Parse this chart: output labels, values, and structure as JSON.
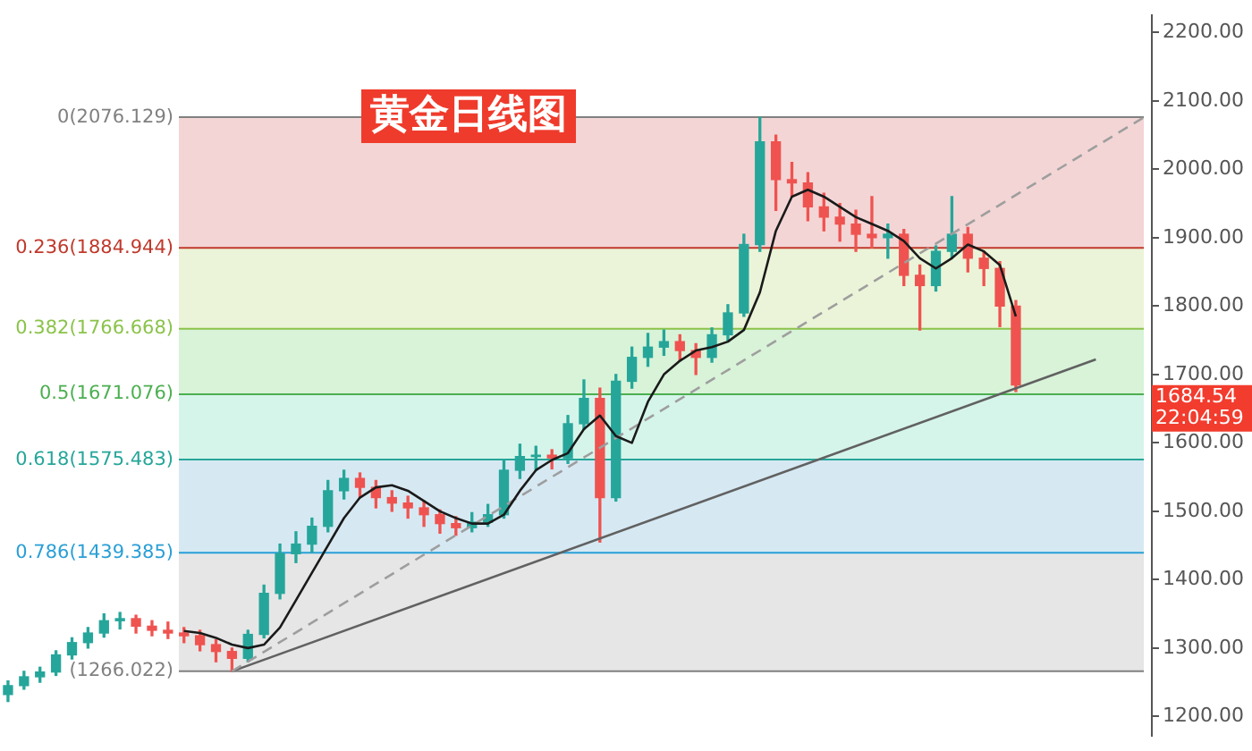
{
  "chart_data": {
    "type": "candlestick",
    "title": "黄金日线图",
    "categories": [
      null,
      null,
      null,
      null,
      null,
      null,
      null,
      null,
      null,
      null,
      null,
      null,
      null,
      null,
      null,
      null,
      null,
      null,
      null,
      null,
      null,
      null,
      null,
      null,
      null,
      null,
      null,
      null,
      null,
      null,
      null,
      null,
      null,
      null,
      null,
      null,
      null,
      null,
      null,
      null,
      null,
      null,
      null,
      null,
      null,
      null,
      null,
      null,
      null,
      null,
      null,
      null,
      null,
      null,
      null,
      null,
      null,
      null,
      null,
      null,
      null,
      null,
      null,
      null,
      null,
      null,
      null,
      null,
      null,
      null,
      null,
      null
    ],
    "ohlc": [
      [
        1232,
        1252,
        1222,
        1245
      ],
      [
        1245,
        1266,
        1240,
        1258
      ],
      [
        1258,
        1272,
        1250,
        1265
      ],
      [
        1265,
        1296,
        1260,
        1290
      ],
      [
        1290,
        1315,
        1284,
        1308
      ],
      [
        1308,
        1330,
        1300,
        1322
      ],
      [
        1322,
        1350,
        1316,
        1340
      ],
      [
        1340,
        1352,
        1328,
        1343
      ],
      [
        1343,
        1348,
        1322,
        1332
      ],
      [
        1332,
        1340,
        1318,
        1326
      ],
      [
        1326,
        1338,
        1314,
        1322
      ],
      [
        1322,
        1330,
        1308,
        1318
      ],
      [
        1318,
        1326,
        1296,
        1305
      ],
      [
        1305,
        1312,
        1280,
        1295
      ],
      [
        1295,
        1300,
        1266.022,
        1285
      ],
      [
        1285,
        1326,
        1280,
        1320
      ],
      [
        1320,
        1392,
        1315,
        1380
      ],
      [
        1380,
        1452,
        1372,
        1438
      ],
      [
        1438,
        1470,
        1425,
        1452
      ],
      [
        1452,
        1490,
        1440,
        1478
      ],
      [
        1478,
        1545,
        1470,
        1530
      ],
      [
        1530,
        1560,
        1518,
        1548
      ],
      [
        1548,
        1556,
        1520,
        1535
      ],
      [
        1535,
        1545,
        1505,
        1520
      ],
      [
        1520,
        1530,
        1500,
        1512
      ],
      [
        1512,
        1522,
        1490,
        1505
      ],
      [
        1505,
        1515,
        1478,
        1495
      ],
      [
        1495,
        1502,
        1468,
        1482
      ],
      [
        1482,
        1492,
        1465,
        1476
      ],
      [
        1476,
        1498,
        1470,
        1484
      ],
      [
        1484,
        1510,
        1478,
        1495
      ],
      [
        1495,
        1575,
        1490,
        1560
      ],
      [
        1560,
        1598,
        1548,
        1580
      ],
      [
        1580,
        1595,
        1560,
        1582
      ],
      [
        1582,
        1590,
        1562,
        1578
      ],
      [
        1578,
        1640,
        1570,
        1628
      ],
      [
        1628,
        1692,
        1620,
        1665
      ],
      [
        1665,
        1680,
        1455,
        1520
      ],
      [
        1520,
        1700,
        1515,
        1690
      ],
      [
        1690,
        1740,
        1680,
        1725
      ],
      [
        1725,
        1760,
        1712,
        1740
      ],
      [
        1740,
        1765,
        1728,
        1748
      ],
      [
        1748,
        1758,
        1720,
        1735
      ],
      [
        1735,
        1745,
        1700,
        1725
      ],
      [
        1725,
        1768,
        1718,
        1758
      ],
      [
        1758,
        1802,
        1750,
        1790
      ],
      [
        1790,
        1905,
        1785,
        1890
      ],
      [
        1890,
        2076.129,
        1880,
        2040
      ],
      [
        2040,
        2050,
        1940,
        1985
      ],
      [
        1985,
        2010,
        1960,
        1980
      ],
      [
        1980,
        1995,
        1925,
        1945
      ],
      [
        1945,
        1965,
        1910,
        1930
      ],
      [
        1930,
        1950,
        1895,
        1920
      ],
      [
        1920,
        1940,
        1880,
        1905
      ],
      [
        1905,
        1960,
        1885,
        1900
      ],
      [
        1900,
        1920,
        1870,
        1905
      ],
      [
        1905,
        1912,
        1830,
        1845
      ],
      [
        1845,
        1860,
        1765,
        1830
      ],
      [
        1830,
        1888,
        1822,
        1880
      ],
      [
        1880,
        1960,
        1870,
        1905
      ],
      [
        1905,
        1915,
        1850,
        1870
      ],
      [
        1870,
        1880,
        1830,
        1855
      ],
      [
        1855,
        1865,
        1770,
        1800
      ],
      [
        1800,
        1808,
        1675,
        1684.54
      ],
      null,
      null,
      null,
      null,
      null,
      null,
      null,
      null
    ],
    "colors": [
      "#26a69a",
      "#26a69a",
      "#26a69a",
      "#26a69a",
      "#26a69a",
      "#26a69a",
      "#26a69a",
      "#26a69a",
      "#ef5350",
      "#ef5350",
      "#ef5350",
      "#ef5350",
      "#ef5350",
      "#ef5350",
      "#ef5350",
      "#26a69a",
      "#26a69a",
      "#26a69a",
      "#26a69a",
      "#26a69a",
      "#26a69a",
      "#26a69a",
      "#ef5350",
      "#ef5350",
      "#ef5350",
      "#ef5350",
      "#ef5350",
      "#ef5350",
      "#ef5350",
      "#26a69a",
      "#26a69a",
      "#26a69a",
      "#26a69a",
      "#26a69a",
      "#ef5350",
      "#26a69a",
      "#26a69a",
      "#ef5350",
      "#26a69a",
      "#26a69a",
      "#26a69a",
      "#26a69a",
      "#ef5350",
      "#ef5350",
      "#26a69a",
      "#26a69a",
      "#26a69a",
      "#26a69a",
      "#ef5350",
      "#ef5350",
      "#ef5350",
      "#ef5350",
      "#ef5350",
      "#ef5350",
      "#ef5350",
      "#26a69a",
      "#ef5350",
      "#ef5350",
      "#26a69a",
      "#26a69a",
      "#ef5350",
      "#ef5350",
      "#ef5350",
      "#ef5350",
      null,
      null,
      null,
      null,
      null,
      null,
      null,
      null
    ],
    "series": [
      {
        "type": "line",
        "color": "#1a1a1a",
        "values": [
          null,
          null,
          null,
          null,
          null,
          null,
          null,
          null,
          null,
          null,
          null,
          1325,
          1322,
          1315,
          1305,
          1300,
          1305,
          1330,
          1370,
          1410,
          1450,
          1490,
          1520,
          1535,
          1538,
          1530,
          1515,
          1500,
          1490,
          1482,
          1482,
          1495,
          1530,
          1560,
          1575,
          1585,
          1620,
          1640,
          1610,
          1600,
          1660,
          1700,
          1720,
          1735,
          1740,
          1748,
          1765,
          1820,
          1910,
          1960,
          1970,
          1960,
          1945,
          1930,
          1920,
          1910,
          1895,
          1870,
          1855,
          1870,
          1890,
          1880,
          1860,
          1785,
          null,
          null,
          null,
          null,
          null,
          null,
          null,
          null
        ]
      },
      {
        "type": "line",
        "color": "#9e9e9e",
        "line_style": "dashed",
        "values": [
          null,
          null,
          null,
          null,
          null,
          null,
          null,
          null,
          null,
          null,
          null,
          null,
          null,
          null,
          1266,
          null,
          null,
          null,
          null,
          null,
          null,
          null,
          null,
          null,
          null,
          null,
          null,
          null,
          null,
          null,
          null,
          null,
          null,
          null,
          null,
          null,
          null,
          null,
          null,
          null,
          null,
          null,
          null,
          null,
          null,
          null,
          null,
          null,
          null,
          null,
          null,
          null,
          null,
          null,
          null,
          null,
          null,
          null,
          null,
          null,
          null,
          null,
          null,
          null,
          null,
          null,
          null,
          null,
          null,
          null,
          null,
          2076
        ]
      },
      {
        "type": "line",
        "color": "#616161",
        "line_style": "solid",
        "values": [
          null,
          null,
          null,
          null,
          null,
          null,
          null,
          null,
          null,
          null,
          null,
          null,
          null,
          null,
          1266,
          null,
          null,
          null,
          null,
          null,
          null,
          null,
          null,
          null,
          null,
          null,
          null,
          null,
          null,
          null,
          null,
          null,
          null,
          null,
          null,
          null,
          null,
          null,
          null,
          null,
          null,
          null,
          null,
          null,
          null,
          null,
          null,
          null,
          null,
          null,
          null,
          null,
          null,
          null,
          null,
          null,
          null,
          null,
          null,
          null,
          null,
          null,
          null,
          null,
          null,
          null,
          null,
          null,
          1722,
          null,
          null,
          null
        ]
      }
    ],
    "marker": "none",
    "ylim": [
      1172,
      2225
    ],
    "yticks": [
      {
        "value": 1200,
        "label": "1200.00"
      },
      {
        "value": 1300,
        "label": "1300.00"
      },
      {
        "value": 1400,
        "label": "1400.00"
      },
      {
        "value": 1500,
        "label": "1500.00"
      },
      {
        "value": 1600,
        "label": "1600.00"
      },
      {
        "value": 1700,
        "label": "1700.00"
      },
      {
        "value": 1800,
        "label": "1800.00"
      },
      {
        "value": 1900,
        "label": "1900.00"
      },
      {
        "value": 2000,
        "label": "2000.00"
      },
      {
        "value": 2100,
        "label": "2100.00"
      },
      {
        "value": 2200,
        "label": "2200.00"
      }
    ],
    "tick_labels": "y",
    "bands": [
      {
        "axis": "y",
        "from": 1884.944,
        "to": 2076.129,
        "color": "#f3d5d5"
      },
      {
        "axis": "y",
        "from": 1766.668,
        "to": 1884.944,
        "color": "#ebf4d8"
      },
      {
        "axis": "y",
        "from": 1671.076,
        "to": 1766.668,
        "color": "#d8f3d8"
      },
      {
        "axis": "y",
        "from": 1575.483,
        "to": 1671.076,
        "color": "#d6f5ea"
      },
      {
        "axis": "y",
        "from": 1439.385,
        "to": 1575.483,
        "color": "#d6e9f3"
      },
      {
        "axis": "y",
        "from": 1266.022,
        "to": 1439.385,
        "color": "#e6e6e6"
      }
    ],
    "ref_lines": [
      {
        "axis": "y",
        "value": 2076.129,
        "label": "0(2076.129)",
        "color": "#808080"
      },
      {
        "axis": "y",
        "value": 1884.944,
        "label": "0.236(1884.944)",
        "color": "#c0392b"
      },
      {
        "axis": "y",
        "value": 1766.668,
        "label": "0.382(1766.668)",
        "color": "#8bc34a"
      },
      {
        "axis": "y",
        "value": 1671.076,
        "label": "0.5(1671.076)",
        "color": "#4caf50"
      },
      {
        "axis": "y",
        "value": 1575.483,
        "label": "0.618(1575.483)",
        "color": "#26a69a"
      },
      {
        "axis": "y",
        "value": 1439.385,
        "label": "0.786(1439.385)",
        "color": "#2a9fd6"
      },
      {
        "axis": "y",
        "value": 1266.022,
        "label": "(1266.022)",
        "color": "#808080"
      }
    ],
    "annotations": [
      "1684.54",
      "22:04:59"
    ]
  }
}
